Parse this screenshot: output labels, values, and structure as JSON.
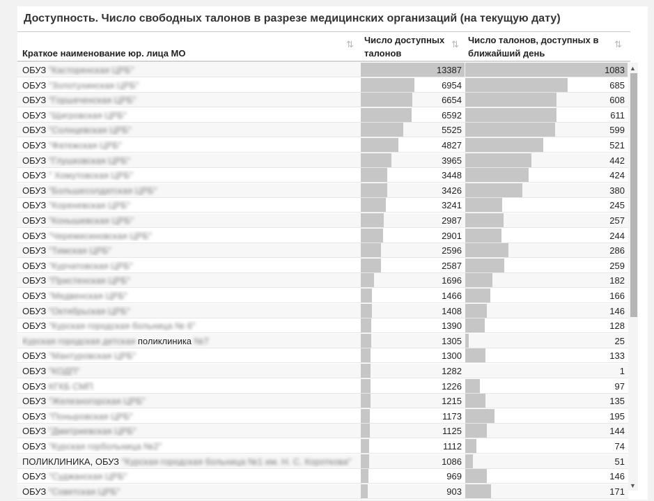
{
  "title": "Доступность. Число свободных талонов в разрезе медицинских организаций (на текущую дату)",
  "columns": {
    "name": "Краткое наименование юр. лица МО",
    "available": "Число доступных талонов",
    "nearest": "Число талонов, доступных в ближайший день"
  },
  "icons": {
    "sort": "sort-icon",
    "scroll_up": "scroll-up-arrow-icon",
    "scroll_down": "scroll-down-arrow-icon"
  },
  "colors": {
    "bar": "#c6c6c6"
  },
  "max_available": 13387,
  "max_nearest": 1083,
  "rows": [
    {
      "prefix": "ОБУЗ",
      "blurred": "\"Касторенская ЦРБ\"",
      "suffix": "",
      "available": "13387",
      "nearest": "1083"
    },
    {
      "prefix": "ОБУЗ",
      "blurred": "\"Золотухинская ЦРБ\"",
      "suffix": "",
      "available": "6954",
      "nearest": "685"
    },
    {
      "prefix": "ОБУЗ",
      "blurred": "\"Горшеченская ЦРБ\"",
      "suffix": "",
      "available": "6654",
      "nearest": "608"
    },
    {
      "prefix": "ОБУЗ",
      "blurred": "\"Щигровская ЦРБ\"",
      "suffix": "",
      "available": "6592",
      "nearest": "611"
    },
    {
      "prefix": "ОБУЗ",
      "blurred": "\"Солнцевская ЦРБ\"",
      "suffix": "",
      "available": "5525",
      "nearest": "599"
    },
    {
      "prefix": "ОБУЗ",
      "blurred": "\"Фатежская ЦРБ\"",
      "suffix": "",
      "available": "4827",
      "nearest": "521"
    },
    {
      "prefix": "ОБУЗ",
      "blurred": "\"Глушковская ЦРБ\"",
      "suffix": "",
      "available": "3965",
      "nearest": "442"
    },
    {
      "prefix": "ОБУЗ",
      "blurred": "\" Хомутовская ЦРБ\"",
      "suffix": "",
      "available": "3448",
      "nearest": "424"
    },
    {
      "prefix": "ОБУЗ",
      "blurred": "\"Большесолдатская ЦРБ\"",
      "suffix": "",
      "available": "3426",
      "nearest": "380"
    },
    {
      "prefix": "ОБУЗ",
      "blurred": "\"Кореневская ЦРБ\"",
      "suffix": "",
      "available": "3241",
      "nearest": "245"
    },
    {
      "prefix": "ОБУЗ",
      "blurred": "\"Конышевская ЦРБ\"",
      "suffix": "",
      "available": "2987",
      "nearest": "257"
    },
    {
      "prefix": "ОБУЗ",
      "blurred": "\"Черемисиновская ЦРБ\"",
      "suffix": "",
      "available": "2901",
      "nearest": "244"
    },
    {
      "prefix": "ОБУЗ",
      "blurred": "\"Тимская ЦРБ\"",
      "suffix": "",
      "available": "2596",
      "nearest": "286"
    },
    {
      "prefix": "ОБУЗ",
      "blurred": "\"Курчатовская ЦРБ\"",
      "suffix": "",
      "available": "2587",
      "nearest": "259"
    },
    {
      "prefix": "ОБУЗ",
      "blurred": "\"Пристенская ЦРБ\"",
      "suffix": "",
      "available": "1696",
      "nearest": "182"
    },
    {
      "prefix": "ОБУЗ",
      "blurred": "\"Медвенская ЦРБ\"",
      "suffix": "",
      "available": "1466",
      "nearest": "166"
    },
    {
      "prefix": "ОБУЗ",
      "blurred": "\"Октябрьская ЦРБ\"",
      "suffix": "",
      "available": "1408",
      "nearest": "146"
    },
    {
      "prefix": "ОБУЗ",
      "blurred": "\"Курская городская больница № 6\"",
      "suffix": "",
      "available": "1390",
      "nearest": "128"
    },
    {
      "prefix": "",
      "blurred": "Курская городская детская",
      "suffix": "поликлиника",
      "tail": " №7",
      "available": "1305",
      "nearest": "25"
    },
    {
      "prefix": "ОБУЗ",
      "blurred": "\"Мантуровская ЦРБ\"",
      "suffix": "",
      "available": "1300",
      "nearest": "133"
    },
    {
      "prefix": "ОБУЗ",
      "blurred": "\"КОДП\"",
      "suffix": "",
      "available": "1282",
      "nearest": "1"
    },
    {
      "prefix": "ОБУЗ",
      "blurred": "КГКБ СМП",
      "suffix": "",
      "available": "1226",
      "nearest": "97"
    },
    {
      "prefix": "ОБУЗ",
      "blurred": "\"Железногорская ЦРБ\"",
      "suffix": "",
      "available": "1215",
      "nearest": "135"
    },
    {
      "prefix": "ОБУЗ",
      "blurred": "\"Поныровская ЦРБ\"",
      "suffix": "",
      "available": "1173",
      "nearest": "195"
    },
    {
      "prefix": "ОБУЗ",
      "blurred": "\"Дмитриевская ЦРБ\"",
      "suffix": "",
      "available": "1125",
      "nearest": "144"
    },
    {
      "prefix": "ОБУЗ",
      "blurred": "\"Курская горбольница №2\"",
      "suffix": "",
      "available": "1112",
      "nearest": "74"
    },
    {
      "prefix": "ПОЛИКЛИНИКА, ОБУЗ",
      "blurred": "\"Курская городская больница №1 им. Н. С. Короткова\"",
      "suffix": "",
      "available": "1086",
      "nearest": "51"
    },
    {
      "prefix": "ОБУЗ",
      "blurred": "\"Суджанская ЦРБ\"",
      "suffix": "",
      "available": "969",
      "nearest": "146"
    },
    {
      "prefix": "ОБУЗ",
      "blurred": "\"Советская ЦРБ\"",
      "suffix": "",
      "available": "903",
      "nearest": "171"
    }
  ]
}
